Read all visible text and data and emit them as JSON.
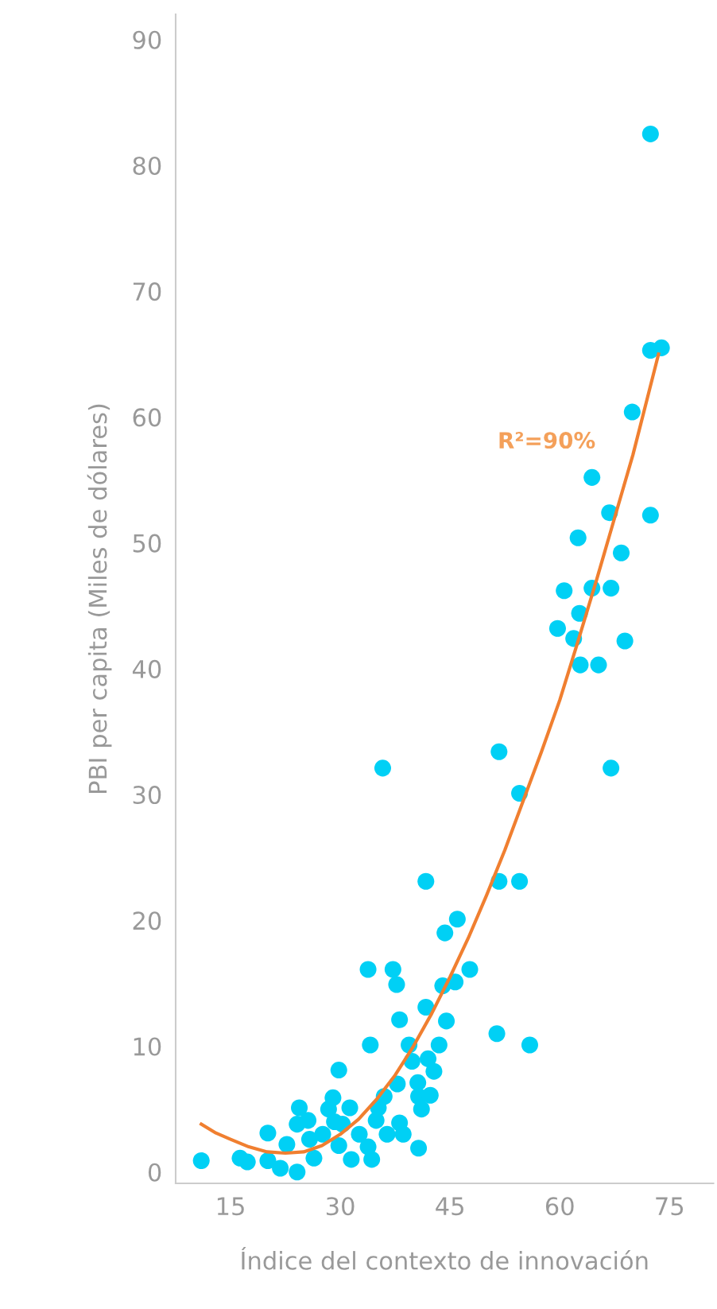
{
  "chart_data": {
    "type": "scatter",
    "xlabel": "Índice del contexto de innovación",
    "ylabel": "PBI per capita (Miles de dólares)",
    "xlim": [
      7.5,
      81
    ],
    "xticks": [
      15,
      30,
      45,
      60,
      75
    ],
    "ylim": [
      -0.9,
      92
    ],
    "yticks": [
      0,
      10,
      20,
      30,
      40,
      50,
      60,
      70,
      80,
      90
    ],
    "grid": false,
    "legend": false,
    "series": [
      {
        "color": "#00d0f5",
        "marker": "circle",
        "x": [
          11.0,
          16.3,
          17.3,
          20.1,
          20.1,
          21.8,
          22.7,
          24.1,
          24.1,
          24.4,
          25.6,
          25.8,
          26.4,
          27.6,
          28.4,
          29.0,
          29.2,
          29.8,
          29.8,
          30.3,
          31.3,
          31.5,
          32.6,
          33.8,
          33.8,
          34.1,
          34.3,
          34.9,
          35.2,
          35.8,
          36.0,
          36.4,
          37.2,
          37.7,
          37.8,
          38.1,
          38.1,
          38.6,
          39.4,
          39.8,
          40.6,
          40.7,
          40.7,
          41.1,
          41.7,
          41.7,
          42.0,
          42.3,
          42.8,
          43.5,
          44.0,
          44.3,
          44.5,
          45.7,
          46.0,
          47.7,
          51.4,
          51.7,
          51.7,
          54.5,
          54.5,
          55.9,
          59.7,
          60.6,
          61.9,
          62.5,
          62.7,
          62.8,
          64.4,
          64.4,
          65.3,
          66.8,
          67.0,
          67.0,
          68.4,
          68.9,
          69.9,
          72.4,
          72.4,
          72.4,
          73.9
        ],
        "values": [
          0.9,
          1.1,
          0.8,
          3.1,
          0.9,
          0.3,
          2.2,
          0.0,
          3.8,
          5.1,
          4.1,
          2.6,
          1.1,
          3.0,
          5.0,
          5.9,
          4.0,
          8.1,
          2.1,
          3.8,
          5.1,
          1.0,
          3.0,
          16.1,
          2.0,
          10.1,
          1.0,
          4.1,
          5.1,
          32.1,
          6.0,
          3.0,
          16.1,
          14.9,
          7.0,
          12.1,
          3.9,
          3.0,
          10.1,
          8.8,
          7.1,
          1.9,
          6.0,
          5.0,
          23.1,
          13.1,
          9.0,
          6.1,
          8.0,
          10.1,
          14.8,
          19.0,
          12.0,
          15.1,
          20.1,
          16.1,
          11.0,
          33.4,
          23.1,
          30.1,
          23.1,
          10.1,
          43.2,
          46.2,
          42.4,
          50.4,
          44.4,
          40.3,
          46.4,
          55.2,
          40.3,
          52.4,
          46.4,
          32.1,
          49.2,
          42.2,
          60.4,
          52.2,
          82.5,
          65.3,
          65.5
        ]
      },
      {
        "type": "line",
        "name": "R²=90%",
        "color": "#f07f30",
        "line_style": "solid",
        "marker": "none",
        "x": [
          11,
          13,
          15,
          17.5,
          20,
          22.5,
          25,
          27.5,
          30,
          32.5,
          35,
          37.5,
          40,
          42.5,
          45,
          47.5,
          50,
          52.5,
          55,
          57.5,
          60,
          62.5,
          65,
          67.5,
          70,
          73.5
        ],
        "values": [
          3.8,
          3.1,
          2.6,
          2.0,
          1.6,
          1.5,
          1.6,
          2.1,
          3.0,
          4.2,
          5.8,
          7.7,
          10,
          12.6,
          15.5,
          18.6,
          22,
          25.6,
          29.5,
          33.4,
          37.5,
          42.2,
          47,
          52,
          57,
          65
        ]
      }
    ]
  }
}
